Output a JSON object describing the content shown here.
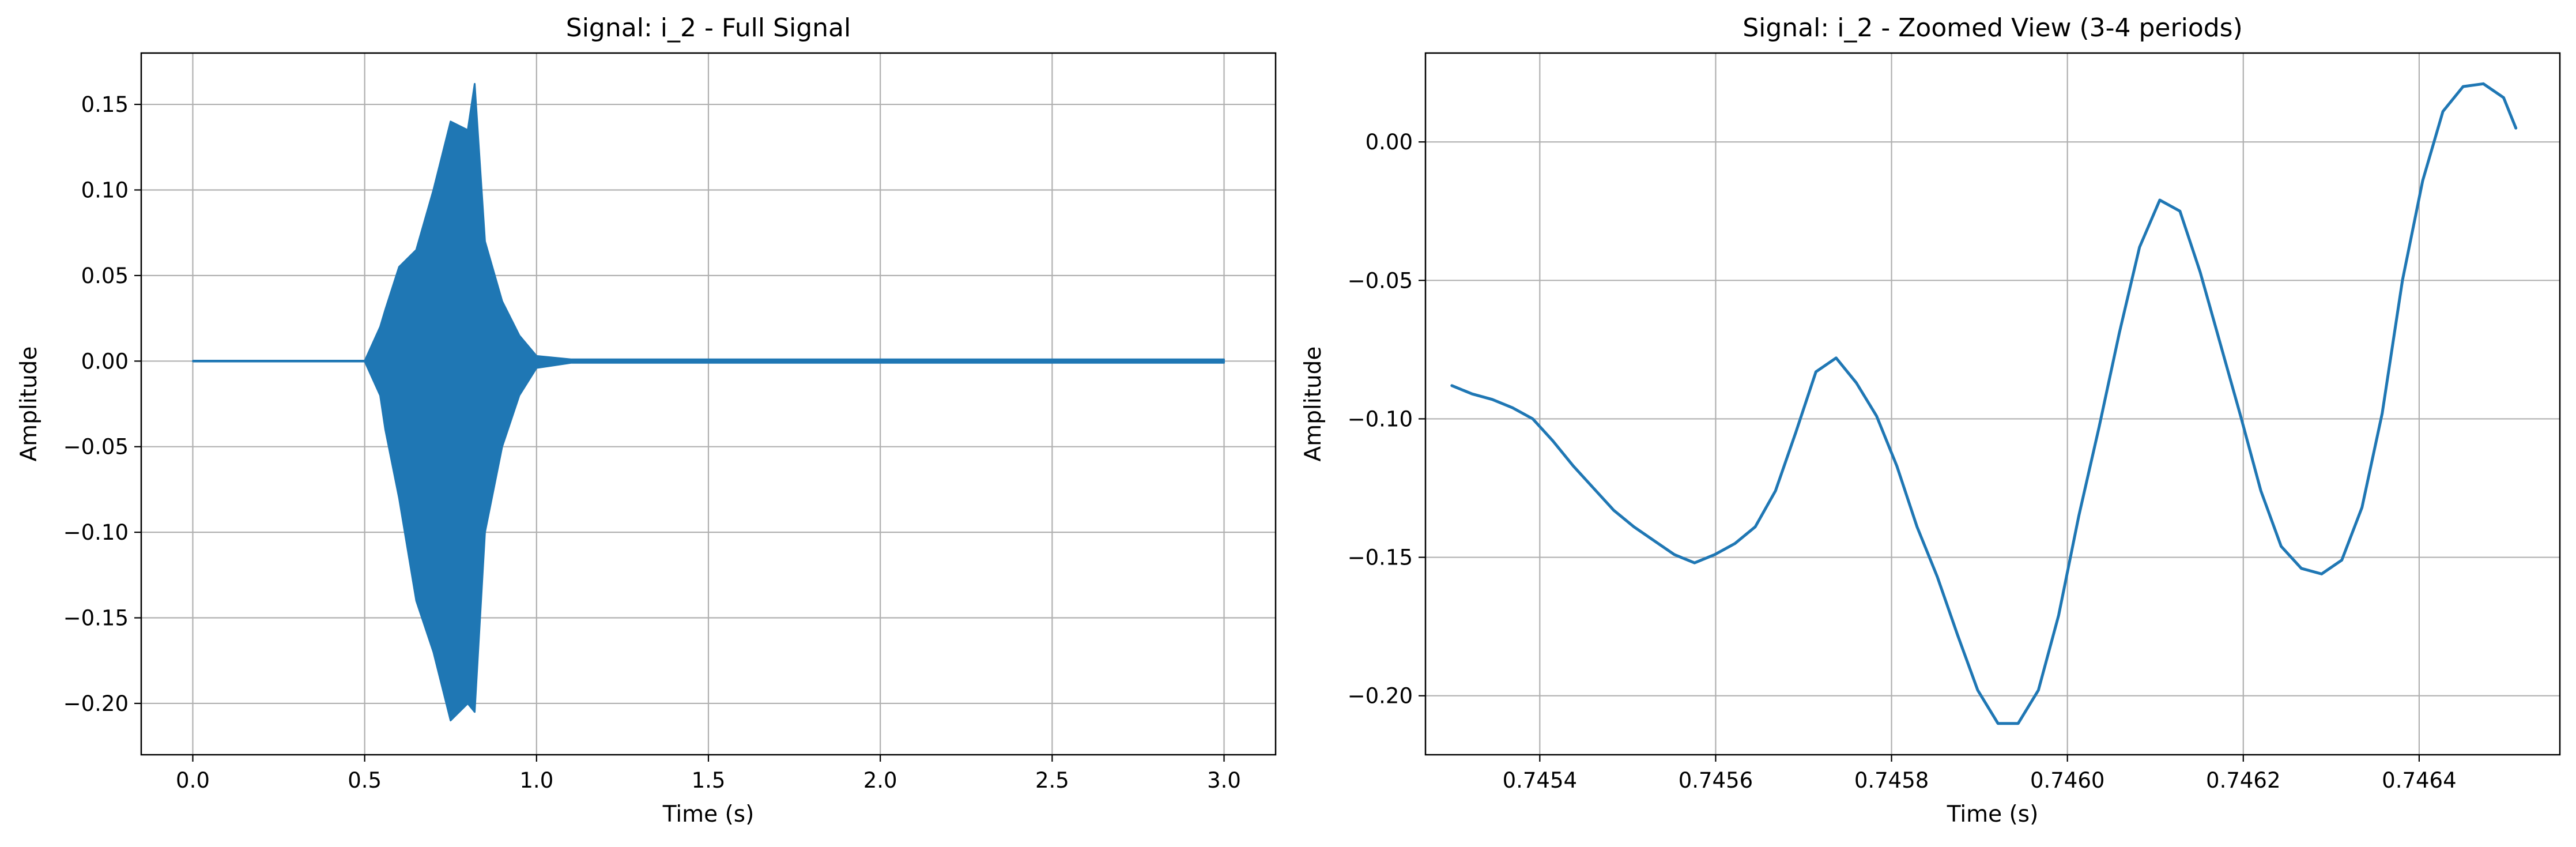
{
  "chart_data": [
    {
      "type": "line",
      "title": "Signal: i_2 - Full Signal",
      "xlabel": "Time (s)",
      "ylabel": "Amplitude",
      "xlim": [
        -0.15,
        3.15
      ],
      "ylim": [
        -0.23,
        0.18
      ],
      "xticks": [
        0.0,
        0.5,
        1.0,
        1.5,
        2.0,
        2.5,
        3.0
      ],
      "xtick_labels": [
        "0.0",
        "0.5",
        "1.0",
        "1.5",
        "2.0",
        "2.5",
        "3.0"
      ],
      "yticks": [
        -0.2,
        -0.15,
        -0.1,
        -0.05,
        0.0,
        0.05,
        0.1,
        0.15
      ],
      "ytick_labels": [
        "−0.20",
        "−0.15",
        "−0.10",
        "−0.05",
        "0.00",
        "0.05",
        "0.10",
        "0.15"
      ],
      "grid": true,
      "color": "#1f77b4",
      "series": [
        {
          "x": [
            0.0,
            0.5,
            0.545,
            0.56,
            0.6,
            0.65,
            0.7,
            0.75,
            0.8,
            0.82,
            0.85,
            0.9,
            0.95,
            1.0,
            1.1,
            1.5,
            2.0,
            2.5,
            3.0
          ],
          "upper": [
            0.0,
            0.0,
            0.02,
            0.03,
            0.055,
            0.065,
            0.1,
            0.14,
            0.135,
            0.162,
            0.07,
            0.035,
            0.015,
            0.003,
            0.001,
            0.001,
            0.001,
            0.001,
            0.001
          ],
          "lower": [
            0.0,
            0.0,
            -0.02,
            -0.04,
            -0.08,
            -0.14,
            -0.17,
            -0.21,
            -0.2,
            -0.205,
            -0.1,
            -0.05,
            -0.02,
            -0.004,
            -0.001,
            -0.001,
            -0.001,
            -0.001,
            -0.001
          ]
        }
      ]
    },
    {
      "type": "line",
      "title": "Signal: i_2 - Zoomed View (3-4 periods)",
      "xlabel": "Time (s)",
      "ylabel": "Amplitude",
      "xlim": [
        0.74527,
        0.74656
      ],
      "ylim": [
        -0.2213,
        0.0321
      ],
      "xticks": [
        0.7454,
        0.7456,
        0.7458,
        0.746,
        0.7462,
        0.7464
      ],
      "xtick_labels": [
        "0.7454",
        "0.7456",
        "0.7458",
        "0.7460",
        "0.7462",
        "0.7464"
      ],
      "yticks": [
        -0.2,
        -0.15,
        -0.1,
        -0.05,
        0.0
      ],
      "ytick_labels": [
        "−0.20",
        "−0.15",
        "−0.10",
        "−0.05",
        "0.00"
      ],
      "grid": true,
      "color": "#1f77b4",
      "series": [
        {
          "x": [
            0.7453,
            0.745323,
            0.745346,
            0.745369,
            0.745392,
            0.745415,
            0.745438,
            0.745461,
            0.745484,
            0.745507,
            0.74553,
            0.745553,
            0.745576,
            0.745599,
            0.745622,
            0.745645,
            0.745668,
            0.745691,
            0.745714,
            0.745737,
            0.74576,
            0.745783,
            0.745806,
            0.745829,
            0.745852,
            0.745875,
            0.745898,
            0.745921,
            0.745944,
            0.745967,
            0.74599,
            0.746013,
            0.746036,
            0.746059,
            0.746082,
            0.746105,
            0.746128,
            0.746151,
            0.746174,
            0.746197,
            0.74622,
            0.746243,
            0.746266,
            0.746289,
            0.746312,
            0.746335,
            0.746358,
            0.746381,
            0.746404,
            0.746427,
            0.74645,
            0.746473,
            0.746496,
            0.74651
          ],
          "y": [
            -0.088,
            -0.091,
            -0.093,
            -0.096,
            -0.1,
            -0.108,
            -0.117,
            -0.125,
            -0.133,
            -0.139,
            -0.144,
            -0.149,
            -0.152,
            -0.149,
            -0.145,
            -0.139,
            -0.126,
            -0.105,
            -0.083,
            -0.078,
            -0.087,
            -0.099,
            -0.117,
            -0.139,
            -0.157,
            -0.178,
            -0.198,
            -0.21,
            -0.21,
            -0.198,
            -0.171,
            -0.135,
            -0.103,
            -0.069,
            -0.038,
            -0.021,
            -0.025,
            -0.047,
            -0.073,
            -0.099,
            -0.126,
            -0.146,
            -0.154,
            -0.156,
            -0.151,
            -0.132,
            -0.098,
            -0.05,
            -0.014,
            0.011,
            0.02,
            0.021,
            0.016,
            0.005
          ]
        }
      ]
    }
  ]
}
